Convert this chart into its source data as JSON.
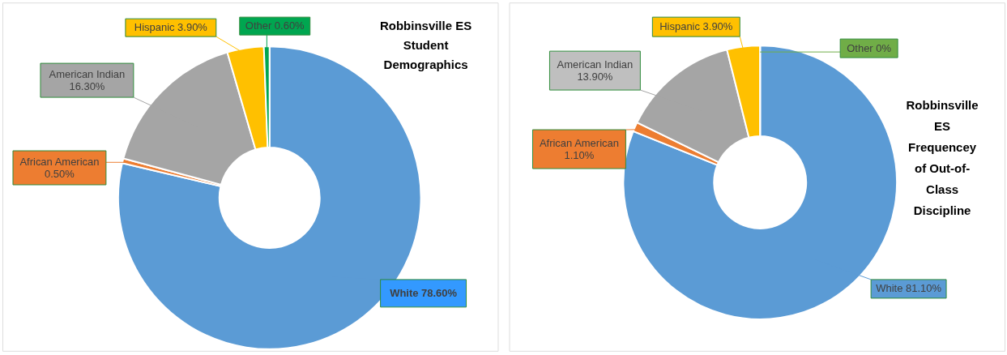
{
  "chart_data": [
    {
      "type": "donut",
      "title": "Robbinsville ES Student Demographics",
      "categories": [
        "White",
        "African American",
        "American Indian",
        "Hispanic",
        "Other"
      ],
      "values": [
        78.6,
        0.5,
        16.3,
        3.9,
        0.6
      ],
      "colors": [
        "#5b9bd5",
        "#ed7d31",
        "#a5a5a5",
        "#ffc000",
        "#00a650"
      ],
      "value_labels": [
        "78.60%",
        "0.50%",
        "16.30%",
        "3.90%",
        "0.60%"
      ]
    },
    {
      "type": "donut",
      "title": "Robbinsville ES Frequencey of Out-of-Class Discipline",
      "categories": [
        "White",
        "African American",
        "American Indian",
        "Hispanic",
        "Other"
      ],
      "values": [
        81.1,
        1.1,
        13.9,
        3.9,
        0
      ],
      "colors": [
        "#5b9bd5",
        "#ed7d31",
        "#a5a5a5",
        "#ffc000",
        "#70ad47"
      ],
      "value_labels": [
        "81.10%",
        "1.10%",
        "13.90%",
        "3.90%",
        "0%"
      ]
    }
  ]
}
